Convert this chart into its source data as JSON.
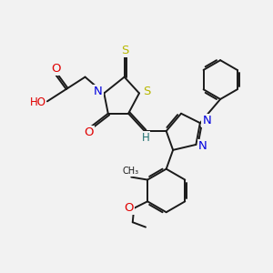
{
  "bg_color": "#f2f2f2",
  "bond_color": "#1a1a1a",
  "bond_width": 1.4,
  "atom_colors": {
    "S": "#b8b800",
    "N": "#0000e0",
    "O": "#e00000",
    "H": "#207070",
    "C": "#1a1a1a"
  },
  "font_size": 8.5,
  "dbo": 0.055
}
